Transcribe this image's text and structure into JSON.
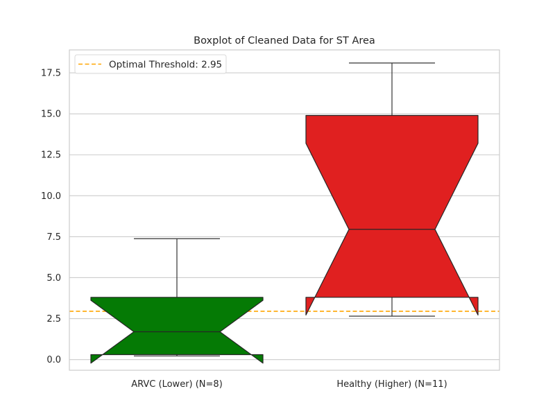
{
  "chart_data": {
    "type": "box",
    "title": "Boxplot of Cleaned Data for ST Area",
    "xlabel": "",
    "ylabel": "",
    "ylim": [
      -0.65,
      18.9
    ],
    "yticks": [
      0.0,
      2.5,
      5.0,
      7.5,
      10.0,
      12.5,
      15.0,
      17.5
    ],
    "ytick_labels": [
      "0.0",
      "2.5",
      "5.0",
      "7.5",
      "10.0",
      "12.5",
      "15.0",
      "17.5"
    ],
    "grid": "horizontal",
    "notched": true,
    "categories": [
      "ARVC (Lower) (N=8)",
      "Healthy (Higher) (N=11)"
    ],
    "boxes": [
      {
        "label": "ARVC (Lower) (N=8)",
        "color": "#057a05",
        "whisker_low": 0.22,
        "q1": 0.3,
        "notch_low": -0.22,
        "median": 1.7,
        "notch_high": 3.62,
        "q3": 3.8,
        "whisker_high": 7.38
      },
      {
        "label": "Healthy (Higher) (N=11)",
        "color": "#e02020",
        "whisker_low": 2.65,
        "q1": 3.8,
        "notch_low": 2.72,
        "median": 7.95,
        "notch_high": 13.2,
        "q3": 14.9,
        "whisker_high": 18.1
      }
    ],
    "threshold": {
      "value": 2.95,
      "label": "Optimal Threshold: 2.95",
      "color": "#ffa500"
    },
    "legend": {
      "placement": "top-left"
    }
  }
}
